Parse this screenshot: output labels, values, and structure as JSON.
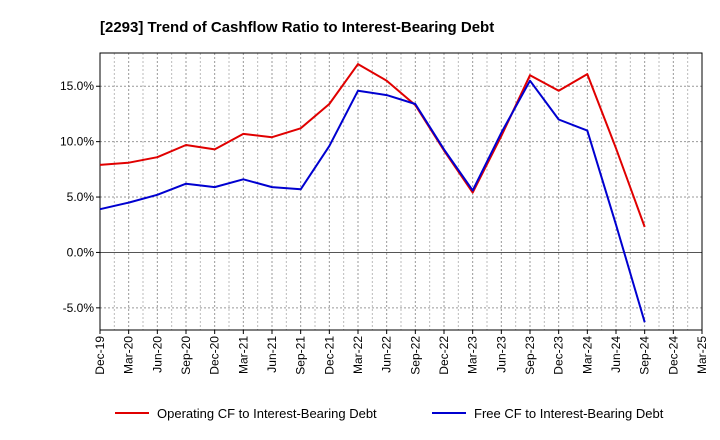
{
  "chart_data": {
    "type": "line",
    "title": "[2293]  Trend of Cashflow Ratio to Interest-Bearing Debt",
    "xlabel": "",
    "ylabel": "",
    "categories": [
      "Dec-19",
      "Mar-20",
      "Jun-20",
      "Sep-20",
      "Dec-20",
      "Mar-21",
      "Jun-21",
      "Sep-21",
      "Dec-21",
      "Mar-22",
      "Jun-22",
      "Sep-22",
      "Dec-22",
      "Mar-23",
      "Jun-23",
      "Sep-23",
      "Dec-23",
      "Mar-24",
      "Jun-24",
      "Sep-24",
      "Dec-24",
      "Mar-25"
    ],
    "ylim": [
      -7,
      18
    ],
    "yticks": [
      -5,
      0,
      5,
      10,
      15
    ],
    "ytick_labels": [
      "-5.0%",
      "0.0%",
      "5.0%",
      "10.0%",
      "15.0%"
    ],
    "grid": true,
    "legend_position": "bottom",
    "series": [
      {
        "name": "Operating CF to Interest-Bearing Debt",
        "color": "#e00000",
        "values": [
          7.9,
          8.1,
          8.6,
          9.7,
          9.3,
          10.7,
          10.4,
          11.2,
          13.4,
          17.0,
          15.5,
          13.3,
          9.2,
          5.4,
          10.5,
          16.0,
          14.6,
          16.1,
          9.4,
          2.3,
          null,
          null
        ]
      },
      {
        "name": "Free CF to Interest-Bearing Debt",
        "color": "#0000d0",
        "values": [
          3.9,
          4.5,
          5.2,
          6.2,
          5.9,
          6.6,
          5.9,
          5.7,
          9.6,
          14.6,
          14.2,
          13.4,
          9.3,
          5.6,
          10.8,
          15.5,
          12.0,
          11.0,
          2.5,
          -6.3,
          null,
          null
        ]
      }
    ]
  }
}
